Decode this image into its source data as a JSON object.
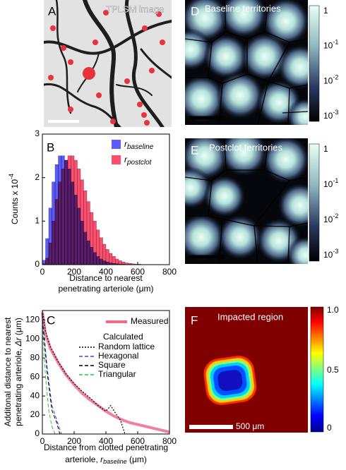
{
  "panels": {
    "A": {
      "label": "A",
      "title": "TPLSM image"
    },
    "B": {
      "label": "B"
    },
    "C": {
      "label": "C"
    },
    "D": {
      "label": "D",
      "title": "Baseline territories"
    },
    "E": {
      "label": "E",
      "title": "Postclot territories"
    },
    "F": {
      "label": "F",
      "title": "Impacted region",
      "scalebar": "500 μm"
    },
    "territory_colorbar": [
      {
        "base": "1"
      },
      {
        "base": "10",
        "exp": "-1"
      },
      {
        "base": "10",
        "exp": "-2"
      },
      {
        "base": "10",
        "exp": "-3"
      }
    ],
    "impact_colorbar": [
      "1.0",
      "0.5",
      "0"
    ]
  },
  "chart_data": [
    {
      "type": "histogram",
      "ylabel": "Counts x 10",
      "ylabel_exp": "-4",
      "xlabel": [
        "Distance to nearest",
        "penetrating arteriole (μm)"
      ],
      "bins": [
        0,
        20,
        40,
        60,
        80,
        100,
        120,
        140,
        160,
        180,
        200,
        220,
        240,
        260,
        280,
        300,
        320,
        340,
        360,
        380,
        400,
        420,
        440,
        460,
        480,
        500,
        520,
        540,
        560,
        580,
        600,
        620,
        640,
        660,
        680,
        700,
        720,
        740,
        760,
        780,
        800
      ],
      "series": [
        {
          "name": "r",
          "name_sub": "postclot",
          "color": "#ff4d6d",
          "values": [
            0.02,
            0.15,
            0.5,
            1.0,
            1.5,
            1.9,
            2.2,
            2.4,
            2.5,
            2.5,
            2.4,
            2.2,
            1.95,
            1.7,
            1.45,
            1.2,
            1.0,
            0.8,
            0.62,
            0.47,
            0.35,
            0.26,
            0.19,
            0.13,
            0.09,
            0.06,
            0.04,
            0.03,
            0.02,
            0.01,
            0.01,
            0,
            0,
            0,
            0,
            0,
            0,
            0,
            0,
            0
          ]
        },
        {
          "name": "r",
          "name_sub": "baseline",
          "color": "#5b5bff",
          "values": [
            0.1,
            0.6,
            1.3,
            1.9,
            2.3,
            2.5,
            2.5,
            2.4,
            2.2,
            1.9,
            1.6,
            1.3,
            1.0,
            0.75,
            0.55,
            0.4,
            0.28,
            0.19,
            0.13,
            0.09,
            0.06,
            0.04,
            0.03,
            0.02,
            0.01,
            0.01,
            0,
            0,
            0,
            0,
            0,
            0,
            0,
            0,
            0,
            0,
            0,
            0,
            0,
            0
          ]
        }
      ],
      "xlim": [
        0,
        800
      ],
      "xticks": [
        0,
        200,
        400,
        600,
        800
      ],
      "ylim": [
        0,
        3
      ],
      "yticks": [
        0,
        1,
        2,
        3
      ]
    },
    {
      "type": "line",
      "ylabel": {
        "line1": "Additonal distance to nearest",
        "line2": "penetrating arteriole, ",
        "var": "Δr",
        "unit": " (μm)"
      },
      "xlabel": {
        "line1": "Distance from clotted penetrating",
        "line2": "arteriole, ",
        "var": "r",
        "sub": "baseline",
        "unit": " (μm)"
      },
      "legend_title": "Calculated",
      "series": [
        {
          "name": "Measured",
          "color": "#f06a8a",
          "linestyle": "solid",
          "width": 4,
          "x": [
            0,
            20,
            50,
            100,
            150,
            200,
            250,
            300,
            350,
            400,
            450,
            500,
            550,
            600,
            650,
            700,
            750,
            800
          ],
          "values": [
            128,
            105,
            90,
            75,
            62,
            52,
            43,
            36,
            30,
            24,
            19,
            15,
            12,
            10,
            8,
            6,
            4,
            2
          ]
        },
        {
          "name": "Random lattice",
          "color": "#000000",
          "linestyle": "dotted",
          "width": 1.2,
          "x": [
            0,
            20,
            50,
            100,
            150,
            200,
            250,
            300,
            350,
            400,
            430,
            460,
            490,
            520
          ],
          "values": [
            130,
            108,
            92,
            76,
            63,
            53,
            45,
            38,
            30,
            24,
            30,
            22,
            15,
            0
          ]
        },
        {
          "name": "Hexagonal",
          "color": "#3050e0",
          "linestyle": "dashed",
          "width": 1,
          "x": [
            0,
            30,
            60,
            80,
            100,
            120
          ],
          "values": [
            125,
            70,
            30,
            20,
            10,
            0
          ]
        },
        {
          "name": "Square",
          "color": "#000000",
          "linestyle": "dashed",
          "width": 1,
          "x": [
            0,
            30,
            60,
            90,
            110
          ],
          "values": [
            120,
            65,
            25,
            12,
            0
          ]
        },
        {
          "name": "Triangular",
          "color": "#30c040",
          "linestyle": "dashed",
          "width": 1,
          "x": [
            0,
            20,
            40,
            60,
            80
          ],
          "values": [
            115,
            60,
            25,
            8,
            0
          ]
        }
      ],
      "xlim": [
        0,
        800
      ],
      "xticks": [
        0,
        200,
        400,
        600,
        800
      ],
      "ylim": [
        0,
        130
      ],
      "yticks": [
        0,
        20,
        40,
        60,
        80,
        100,
        120
      ]
    }
  ]
}
